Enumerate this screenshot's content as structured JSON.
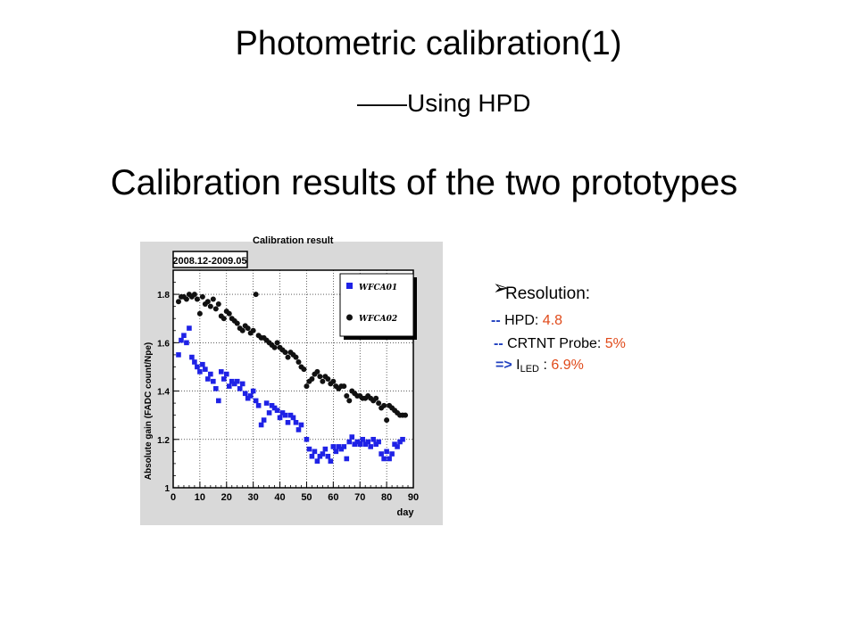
{
  "slide": {
    "title": "Photometric calibration(1)",
    "subtitle": "——Using HPD",
    "heading": "Calibration results of the two prototypes"
  },
  "chart_caption": "Calibration result",
  "resolution": {
    "label": "Resolution:",
    "hpd_prefix": "--",
    "hpd_label": "HPD:",
    "hpd_value": "4.8",
    "crtnt_prefix": "--",
    "crtnt_label": "CRTNT Probe:",
    "crtnt_value": "5%",
    "led_prefix": "=>",
    "led_main": "I",
    "led_sub": "LED",
    "led_sep": ":",
    "led_value": "6.9%"
  },
  "colors": {
    "series_blue": "#1f22e6",
    "series_black": "#111111",
    "bullet_blue": "#1f3fbf",
    "value_red": "#e04a1a"
  },
  "chart_data": {
    "type": "scatter",
    "title": "",
    "date_range_label": "2008.12-2009.05",
    "xlabel": "day",
    "ylabel": "Absolute gain (FADC count/Npe)",
    "xlim": [
      0,
      90
    ],
    "ylim": [
      1.0,
      1.9
    ],
    "x_ticks": [
      "0",
      "10",
      "20",
      "30",
      "40",
      "50",
      "60",
      "70",
      "80",
      "90"
    ],
    "y_ticks": [
      "1",
      "1.2",
      "1.4",
      "1.6",
      "1.8"
    ],
    "grid": true,
    "legend_position": "top-right",
    "series": [
      {
        "name": "WFCA01",
        "marker": "square",
        "color": "#1f22e6",
        "points": [
          [
            2,
            1.55
          ],
          [
            3,
            1.61
          ],
          [
            4,
            1.63
          ],
          [
            5,
            1.6
          ],
          [
            6,
            1.66
          ],
          [
            7,
            1.54
          ],
          [
            8,
            1.52
          ],
          [
            9,
            1.5
          ],
          [
            10,
            1.48
          ],
          [
            11,
            1.51
          ],
          [
            12,
            1.49
          ],
          [
            13,
            1.45
          ],
          [
            14,
            1.47
          ],
          [
            15,
            1.44
          ],
          [
            16,
            1.41
          ],
          [
            17,
            1.36
          ],
          [
            18,
            1.48
          ],
          [
            19,
            1.45
          ],
          [
            20,
            1.47
          ],
          [
            21,
            1.42
          ],
          [
            22,
            1.44
          ],
          [
            23,
            1.43
          ],
          [
            24,
            1.44
          ],
          [
            25,
            1.41
          ],
          [
            26,
            1.43
          ],
          [
            27,
            1.39
          ],
          [
            28,
            1.37
          ],
          [
            29,
            1.38
          ],
          [
            30,
            1.4
          ],
          [
            31,
            1.36
          ],
          [
            32,
            1.34
          ],
          [
            33,
            1.26
          ],
          [
            34,
            1.28
          ],
          [
            35,
            1.35
          ],
          [
            36,
            1.31
          ],
          [
            37,
            1.34
          ],
          [
            38,
            1.33
          ],
          [
            39,
            1.32
          ],
          [
            40,
            1.29
          ],
          [
            41,
            1.31
          ],
          [
            42,
            1.3
          ],
          [
            43,
            1.27
          ],
          [
            44,
            1.3
          ],
          [
            45,
            1.29
          ],
          [
            46,
            1.27
          ],
          [
            47,
            1.24
          ],
          [
            48,
            1.26
          ],
          [
            50,
            1.2
          ],
          [
            51,
            1.16
          ],
          [
            52,
            1.13
          ],
          [
            53,
            1.15
          ],
          [
            54,
            1.11
          ],
          [
            55,
            1.13
          ],
          [
            56,
            1.14
          ],
          [
            57,
            1.16
          ],
          [
            58,
            1.13
          ],
          [
            59,
            1.11
          ],
          [
            60,
            1.17
          ],
          [
            61,
            1.15
          ],
          [
            62,
            1.17
          ],
          [
            63,
            1.16
          ],
          [
            64,
            1.17
          ],
          [
            65,
            1.12
          ],
          [
            66,
            1.19
          ],
          [
            67,
            1.21
          ],
          [
            68,
            1.18
          ],
          [
            69,
            1.19
          ],
          [
            70,
            1.18
          ],
          [
            71,
            1.2
          ],
          [
            72,
            1.18
          ],
          [
            73,
            1.19
          ],
          [
            74,
            1.17
          ],
          [
            75,
            1.2
          ],
          [
            76,
            1.18
          ],
          [
            77,
            1.19
          ],
          [
            78,
            1.14
          ],
          [
            79,
            1.12
          ],
          [
            80,
            1.15
          ],
          [
            81,
            1.12
          ],
          [
            82,
            1.14
          ],
          [
            83,
            1.18
          ],
          [
            84,
            1.17
          ],
          [
            85,
            1.19
          ],
          [
            86,
            1.2
          ]
        ]
      },
      {
        "name": "WFCA02",
        "marker": "circle",
        "color": "#111111",
        "points": [
          [
            2,
            1.77
          ],
          [
            3,
            1.79
          ],
          [
            4,
            1.79
          ],
          [
            5,
            1.78
          ],
          [
            6,
            1.8
          ],
          [
            7,
            1.79
          ],
          [
            8,
            1.8
          ],
          [
            9,
            1.78
          ],
          [
            10,
            1.72
          ],
          [
            11,
            1.79
          ],
          [
            12,
            1.76
          ],
          [
            13,
            1.77
          ],
          [
            14,
            1.75
          ],
          [
            15,
            1.78
          ],
          [
            16,
            1.74
          ],
          [
            17,
            1.76
          ],
          [
            18,
            1.71
          ],
          [
            19,
            1.7
          ],
          [
            20,
            1.73
          ],
          [
            21,
            1.72
          ],
          [
            22,
            1.7
          ],
          [
            23,
            1.69
          ],
          [
            24,
            1.68
          ],
          [
            25,
            1.66
          ],
          [
            26,
            1.65
          ],
          [
            27,
            1.67
          ],
          [
            28,
            1.66
          ],
          [
            29,
            1.64
          ],
          [
            30,
            1.65
          ],
          [
            31,
            1.8
          ],
          [
            32,
            1.63
          ],
          [
            33,
            1.62
          ],
          [
            34,
            1.62
          ],
          [
            35,
            1.61
          ],
          [
            36,
            1.6
          ],
          [
            37,
            1.59
          ],
          [
            38,
            1.58
          ],
          [
            39,
            1.6
          ],
          [
            40,
            1.58
          ],
          [
            41,
            1.57
          ],
          [
            42,
            1.56
          ],
          [
            43,
            1.54
          ],
          [
            44,
            1.56
          ],
          [
            45,
            1.55
          ],
          [
            46,
            1.54
          ],
          [
            47,
            1.52
          ],
          [
            48,
            1.5
          ],
          [
            49,
            1.49
          ],
          [
            50,
            1.42
          ],
          [
            51,
            1.44
          ],
          [
            52,
            1.45
          ],
          [
            53,
            1.47
          ],
          [
            54,
            1.48
          ],
          [
            55,
            1.46
          ],
          [
            56,
            1.44
          ],
          [
            57,
            1.46
          ],
          [
            58,
            1.45
          ],
          [
            59,
            1.43
          ],
          [
            60,
            1.44
          ],
          [
            61,
            1.42
          ],
          [
            62,
            1.41
          ],
          [
            63,
            1.42
          ],
          [
            64,
            1.42
          ],
          [
            65,
            1.38
          ],
          [
            66,
            1.36
          ],
          [
            67,
            1.4
          ],
          [
            68,
            1.39
          ],
          [
            69,
            1.38
          ],
          [
            70,
            1.38
          ],
          [
            71,
            1.37
          ],
          [
            72,
            1.37
          ],
          [
            73,
            1.38
          ],
          [
            74,
            1.37
          ],
          [
            75,
            1.36
          ],
          [
            76,
            1.37
          ],
          [
            77,
            1.35
          ],
          [
            78,
            1.33
          ],
          [
            79,
            1.34
          ],
          [
            80,
            1.28
          ],
          [
            81,
            1.34
          ],
          [
            82,
            1.33
          ],
          [
            83,
            1.32
          ],
          [
            84,
            1.31
          ],
          [
            85,
            1.3
          ],
          [
            86,
            1.3
          ],
          [
            87,
            1.3
          ]
        ]
      }
    ]
  }
}
